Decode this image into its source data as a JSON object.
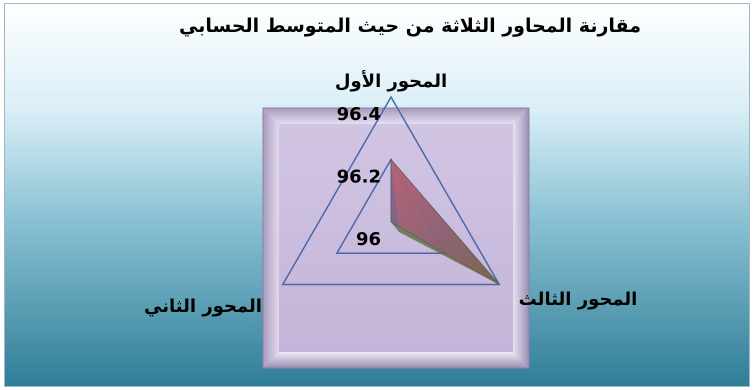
{
  "chart_data": {
    "type": "radar",
    "title": "مقارنة المحاور الثلاثة من حيث المتوسط الحسابي",
    "categories": [
      "المحور الأول",
      "المحور الثالث",
      "المحور الثاني"
    ],
    "series": [
      {
        "values": [
          96.2,
          96.4,
          96.0
        ]
      }
    ],
    "axis_ticks": [
      96,
      96.2,
      96.4
    ],
    "ylim": [
      96,
      96.4
    ],
    "grid": true,
    "legend": "none",
    "colors": {
      "background_top": "#ffffff",
      "background_bottom": "#2f7d97",
      "plot_fill": "#c8b8da",
      "plot_border": "#8f7fa6",
      "grid_line": "#4a68a8",
      "series_top": "#b2556a",
      "series_bottom_right": "#2f7d25",
      "series_left": "#6a5b86"
    }
  }
}
